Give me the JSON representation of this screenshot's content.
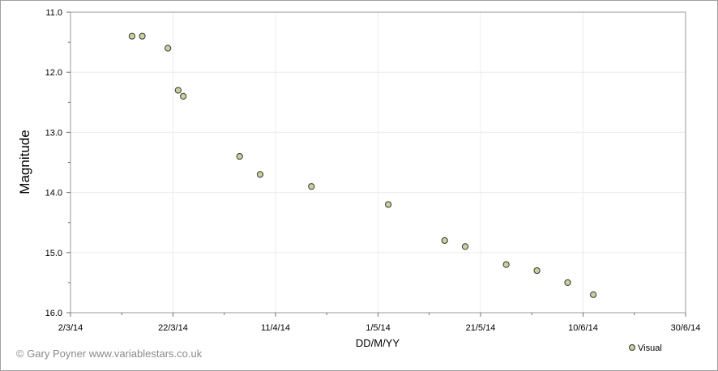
{
  "chart_data": {
    "type": "scatter",
    "ylabel": "Magnitude",
    "xlabel": "DD/M/YY",
    "y_reversed": true,
    "ylim": [
      11.0,
      16.0
    ],
    "y_ticks": [
      "11.0",
      "12.0",
      "13.0",
      "14.0",
      "15.0",
      "16.0"
    ],
    "x_ticks": [
      "2/3/14",
      "22/3/14",
      "11/4/14",
      "1/5/14",
      "21/5/14",
      "10/6/14",
      "30/6/14"
    ],
    "xlim": [
      "2014-03-02",
      "2014-06-30"
    ],
    "grid": true,
    "legend": {
      "position": "bottom-right",
      "entries": [
        "Visual"
      ]
    },
    "series": [
      {
        "name": "Visual",
        "marker_color": "#c9d29c",
        "points": [
          {
            "x": "2014-03-14",
            "y": 11.4
          },
          {
            "x": "2014-03-16",
            "y": 11.4
          },
          {
            "x": "2014-03-21",
            "y": 11.6
          },
          {
            "x": "2014-03-23",
            "y": 12.3
          },
          {
            "x": "2014-03-24",
            "y": 12.4
          },
          {
            "x": "2014-04-04",
            "y": 13.4
          },
          {
            "x": "2014-04-08",
            "y": 13.7
          },
          {
            "x": "2014-04-18",
            "y": 13.9
          },
          {
            "x": "2014-05-03",
            "y": 14.2
          },
          {
            "x": "2014-05-14",
            "y": 14.8
          },
          {
            "x": "2014-05-18",
            "y": 14.9
          },
          {
            "x": "2014-05-26",
            "y": 15.2
          },
          {
            "x": "2014-06-01",
            "y": 15.3
          },
          {
            "x": "2014-06-07",
            "y": 15.5
          },
          {
            "x": "2014-06-12",
            "y": 15.7
          }
        ]
      }
    ]
  },
  "footer": {
    "copyright": "© Gary Poyner  www.variablestars.co.uk"
  }
}
